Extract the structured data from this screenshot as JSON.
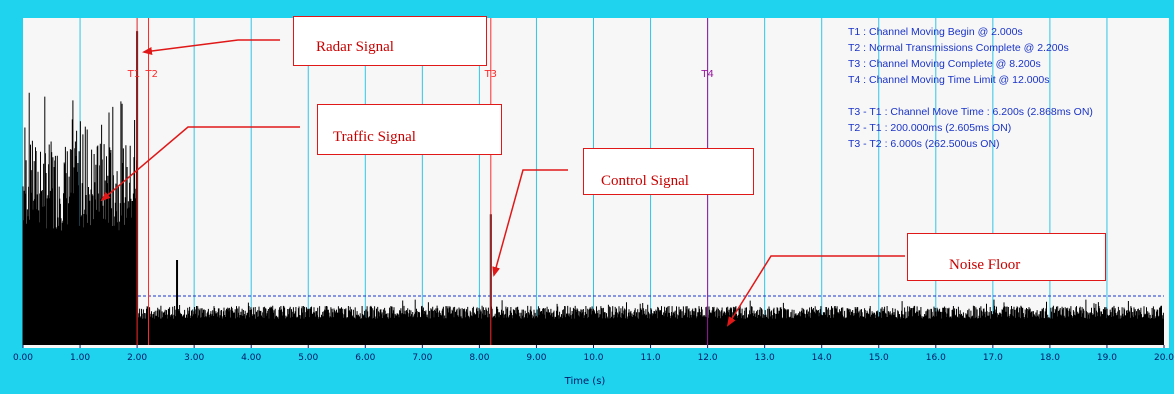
{
  "chart_data": {
    "type": "line",
    "xlabel": "Time (s)",
    "ylabel": "",
    "xlim": [
      0,
      20
    ],
    "x_ticks": [
      "0.00",
      "1.00",
      "2.00",
      "3.00",
      "4.00",
      "5.00",
      "6.00",
      "7.00",
      "8.00",
      "9.00",
      "10.0",
      "11.0",
      "12.0",
      "13.0",
      "14.0",
      "15.0",
      "16.0",
      "17.0",
      "18.0",
      "19.0",
      "20.0"
    ],
    "grid": true,
    "series": [
      {
        "segments": [
          {
            "x_start": 0.0,
            "x_end": 2.0,
            "level_mean": 0.5,
            "level_max": 0.78
          },
          {
            "x_start": 2.0,
            "x_end": 20.0,
            "level_mean": 0.1,
            "level_max": 0.12
          }
        ],
        "spikes": [
          {
            "x": 2.0,
            "y": 0.96
          },
          {
            "x": 2.7,
            "y": 0.26
          },
          {
            "x": 8.2,
            "y": 0.4
          }
        ]
      }
    ],
    "noise_floor_threshold": 0.15,
    "markers": [
      {
        "label": "T1",
        "x": 2.0,
        "color": "#ff2a2a"
      },
      {
        "label": "T2",
        "x": 2.2,
        "color": "#ff2a2a"
      },
      {
        "label": "T3",
        "x": 8.2,
        "color": "#ff2a2a"
      },
      {
        "label": "T4",
        "x": 12.0,
        "color": "#9a1aa0"
      }
    ],
    "info_lines": [
      "T1 : Channel Moving Begin @ 2.000s",
      "T2 : Normal Transmissions Complete @ 2.200s",
      "T3 : Channel Moving Complete @ 8.200s",
      "T4 : Channel Moving Time Limit @ 12.000s",
      "",
      "T3 - T1 : Channel Move Time : 6.200s (2.868ms ON)",
      "T2 - T1 : 200.000ms (2.605ms ON)",
      "T3 - T2 : 6.000s (262.500us ON)"
    ],
    "annotations": [
      {
        "id": "radar",
        "text": "Radar Signal"
      },
      {
        "id": "traffic",
        "text": "Traffic Signal"
      },
      {
        "id": "control",
        "text": "Control Signal"
      },
      {
        "id": "noise",
        "text": "Noise Floor"
      }
    ]
  },
  "colors": {
    "frame": "#1fd2ee",
    "plot_bg": "#f7f7f7",
    "grid": "#2ec6e8",
    "signal": "#000000",
    "threshold": "#1a33c8",
    "callout": "#e01818",
    "callout_text": "#c80000",
    "info_text": "#1a33c8"
  }
}
